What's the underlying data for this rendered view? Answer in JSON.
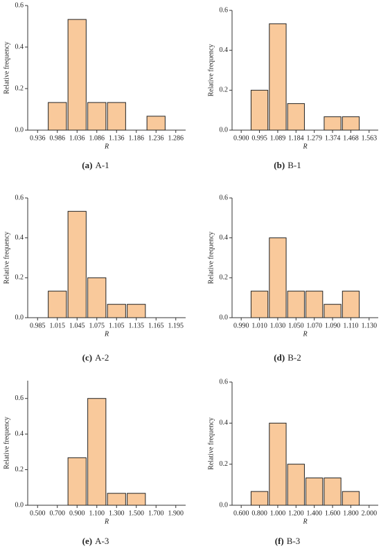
{
  "chart_data": [
    {
      "type": "bar",
      "caption_label": "(a)",
      "caption_text": "A-1",
      "xlabel": "R",
      "ylabel": "Relative frequency",
      "color": "#f9c99b",
      "categories": [
        "0.936",
        "0.986",
        "1.036",
        "1.086",
        "1.136",
        "1.186",
        "1.236",
        "1.286"
      ],
      "values": [
        0,
        0.133,
        0.533,
        0.133,
        0.133,
        0,
        0.067,
        0
      ],
      "ylim": [
        0,
        0.6
      ],
      "yticks": [
        {
          "value": 0,
          "label": "0.0"
        },
        0.2,
        0.4,
        0.6
      ]
    },
    {
      "type": "bar",
      "caption_label": "(b)",
      "caption_text": "B-1",
      "xlabel": "R",
      "ylabel": "Relative frequency",
      "color": "#f9c99b",
      "categories": [
        "0.900",
        "0.995",
        "1.089",
        "1.184",
        "1.279",
        "1.374",
        "1.468",
        "1.563"
      ],
      "values": [
        0,
        0.2,
        0.533,
        0.133,
        0,
        0.067,
        0.067,
        0
      ],
      "ylim": [
        0,
        0.6
      ],
      "yticks": [
        {
          "value": 0,
          "label": "0.0"
        },
        0.2,
        0.4,
        0.6
      ]
    },
    {
      "type": "bar",
      "caption_label": "(c)",
      "caption_text": "A-2",
      "xlabel": "R",
      "ylabel": "Relative frequency",
      "color": "#f9c99b",
      "categories": [
        "0.985",
        "1.015",
        "1.045",
        "1.075",
        "1.105",
        "1.135",
        "1.165",
        "1.195"
      ],
      "values": [
        0,
        0.133,
        0.533,
        0.2,
        0.067,
        0.067,
        0,
        0
      ],
      "ylim": [
        0,
        0.6
      ],
      "yticks": [
        {
          "value": 0,
          "label": "0.0"
        },
        0.2,
        0.4,
        0.6
      ]
    },
    {
      "type": "bar",
      "caption_label": "(d)",
      "caption_text": "B-2",
      "xlabel": "R",
      "ylabel": "Relative frequency",
      "color": "#f9c99b",
      "categories": [
        "0.990",
        "1.010",
        "1.030",
        "1.050",
        "1.070",
        "1.090",
        "1.110",
        "1.130"
      ],
      "values": [
        0,
        0.133,
        0.4,
        0.133,
        0.133,
        0.067,
        0.133,
        0
      ],
      "ylim": [
        0,
        0.6
      ],
      "yticks": [
        {
          "value": 0,
          "label": "0.0"
        },
        0.2,
        0.4,
        0.6
      ]
    },
    {
      "type": "bar",
      "caption_label": "(e)",
      "caption_text": "A-3",
      "xlabel": "R",
      "ylabel": "Relative frequency",
      "color": "#f9c99b",
      "categories": [
        "0.500",
        "0.700",
        "0.900",
        "1.100",
        "1.300",
        "1.500",
        "1.700",
        "1.900"
      ],
      "values": [
        0,
        0,
        0.267,
        0.6,
        0.067,
        0.067,
        0,
        0
      ],
      "ylim": [
        0,
        0.7
      ],
      "yticks": [
        {
          "value": 0,
          "label": "0.0"
        },
        0.2,
        0.4,
        0.6
      ]
    },
    {
      "type": "bar",
      "caption_label": "(f)",
      "caption_text": "B-3",
      "xlabel": "R",
      "ylabel": "Relative frequency",
      "color": "#f9c99b",
      "categories": [
        "0.600",
        "0.800",
        "1.000",
        "1.200",
        "1.400",
        "1.600",
        "1.800",
        "2.000"
      ],
      "values": [
        0,
        0.067,
        0.4,
        0.2,
        0.133,
        0.133,
        0.067,
        0
      ],
      "ylim": [
        0,
        0.6
      ],
      "yticks": [
        {
          "value": 0,
          "label": "0.0"
        },
        0.2,
        0.4,
        0.6
      ]
    }
  ]
}
